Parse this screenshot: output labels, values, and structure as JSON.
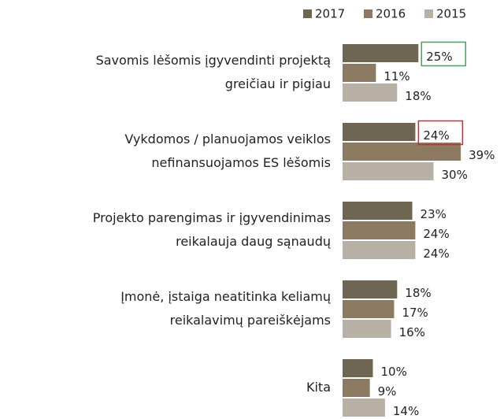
{
  "chart_data": {
    "type": "bar",
    "orientation": "horizontal",
    "categories": [
      [
        "Savomis lėšomis įgyvendinti projektą",
        "greičiau ir pigiau"
      ],
      [
        "Vykdomos / planuojamos veiklos",
        "nefinansuojamos ES lėšomis"
      ],
      [
        "Projekto parengimas ir įgyvendinimas",
        "reikalauja daug sąnaudų"
      ],
      [
        "Įmonė, įstaiga neatitinka keliamų",
        "reikalavimų pareiškėjams"
      ],
      [
        "Kita"
      ]
    ],
    "series": [
      {
        "name": "2017",
        "color": "#6e6553",
        "values": [
          25,
          24,
          23,
          18,
          10
        ],
        "value_labels": [
          "25%",
          "24%",
          "23%",
          "18%",
          "10%"
        ]
      },
      {
        "name": "2016",
        "color": "#8c7b62",
        "values": [
          11,
          39,
          24,
          17,
          9
        ],
        "value_labels": [
          "11%",
          "39%",
          "24%",
          "17%",
          "9%"
        ]
      },
      {
        "name": "2015",
        "color": "#b8b0a4",
        "values": [
          18,
          30,
          24,
          16,
          14
        ],
        "value_labels": [
          "18%",
          "30%",
          "24%",
          "16%",
          "14%"
        ]
      }
    ],
    "highlights": [
      {
        "series": 0,
        "index": 0,
        "color": "#2db34a"
      },
      {
        "series": 0,
        "index": 1,
        "color": "#e0202a"
      }
    ],
    "legend": "top-right"
  }
}
